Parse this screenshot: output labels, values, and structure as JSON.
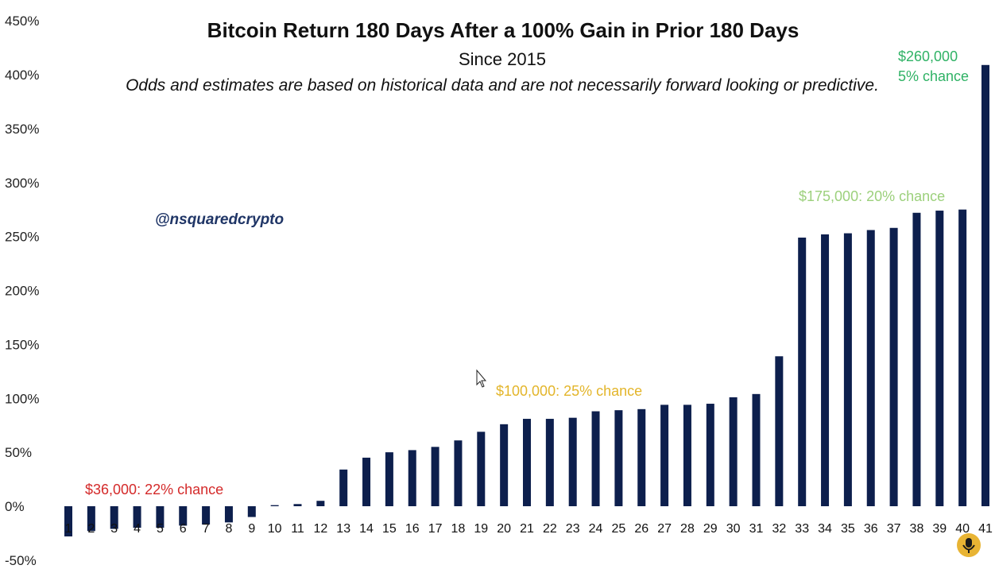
{
  "chart_data": {
    "type": "bar",
    "title": "Bitcoin Return 180 Days After a 100% Gain in Prior 180 Days",
    "subtitle": "Since 2015",
    "note": "Odds and estimates are based on historical data and are not necessarily forward looking or predictive.",
    "handle": "@nsquaredcrypto",
    "categories": [
      "1",
      "2",
      "3",
      "4",
      "5",
      "6",
      "7",
      "8",
      "9",
      "10",
      "11",
      "12",
      "13",
      "14",
      "15",
      "16",
      "17",
      "18",
      "19",
      "20",
      "21",
      "22",
      "23",
      "24",
      "25",
      "26",
      "27",
      "28",
      "29",
      "30",
      "31",
      "32",
      "33",
      "34",
      "35",
      "36",
      "37",
      "38",
      "39",
      "40",
      "41"
    ],
    "values": [
      -28,
      -23,
      -21,
      -20,
      -20,
      -18,
      -17,
      -15,
      -10,
      1,
      2,
      5,
      34,
      45,
      50,
      52,
      55,
      61,
      69,
      76,
      81,
      81,
      82,
      88,
      89,
      90,
      94,
      94,
      95,
      101,
      104,
      139,
      249,
      252,
      253,
      256,
      258,
      272,
      274,
      275,
      409
    ],
    "ylim": [
      -50,
      450
    ],
    "yticks": [
      -50,
      0,
      50,
      100,
      150,
      200,
      250,
      300,
      350,
      400,
      450
    ],
    "ytick_labels": [
      "-50%",
      "0%",
      "50%",
      "100%",
      "150%",
      "200%",
      "250%",
      "300%",
      "350%",
      "400%",
      "450%"
    ],
    "grid": false,
    "annotations": [
      {
        "text": "$36,000: 22% chance",
        "color": "#d42a2a"
      },
      {
        "text": "$100,000:  25% chance",
        "color": "#e3b52a"
      },
      {
        "text": "$175,000: 20% chance",
        "color": "#9cd07c"
      },
      {
        "text": "$260,000",
        "color": "#2fb265"
      },
      {
        "text": "5% chance",
        "color": "#2fb265"
      }
    ]
  }
}
